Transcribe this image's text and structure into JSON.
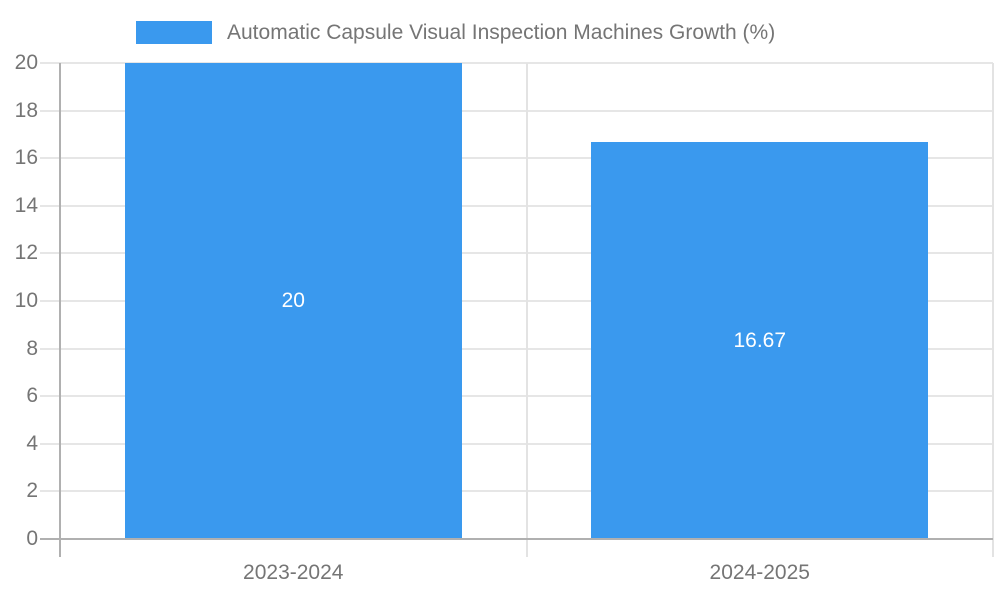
{
  "chart_data": {
    "type": "bar",
    "title": "Automatic Capsule Visual Inspection Machines Growth (%)",
    "categories": [
      "2023-2024",
      "2024-2025"
    ],
    "values": [
      20,
      16.67
    ],
    "value_labels": [
      "20",
      "16.67"
    ],
    "ylim": [
      0,
      20
    ],
    "yticks": [
      0,
      2,
      4,
      6,
      8,
      10,
      12,
      14,
      16,
      18,
      20
    ],
    "xlabel": "",
    "ylabel": "",
    "legend_position": "top",
    "grid": true,
    "colors": {
      "bar": "#3A99EE",
      "value_label": "#ffffff",
      "axis_text": "#757575",
      "gridline": "#e6e6e6",
      "vertical_gridline": "#e3e3e3",
      "axis_line": "#b0b0b0"
    }
  }
}
